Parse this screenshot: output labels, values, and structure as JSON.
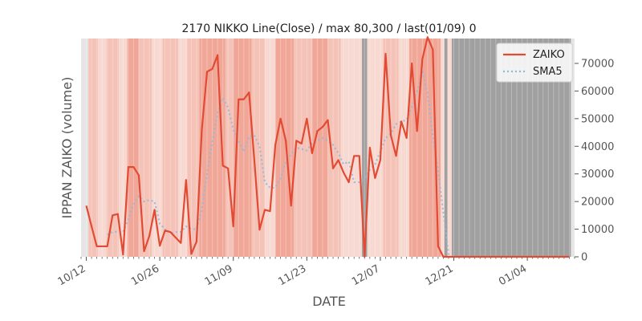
{
  "chart_data": {
    "type": "line",
    "title": "2170 NIKKO Line(Close) / max 80,300 / last(01/09) 0",
    "xlabel": "DATE",
    "ylabel": "IPPAN ZAIKO (volume)",
    "y_axis_side": "right",
    "ylim": [
      0,
      79000
    ],
    "y_ticks": [
      0,
      10000,
      20000,
      30000,
      40000,
      50000,
      60000,
      70000
    ],
    "x_tick_labels": [
      "10/12",
      "10/26",
      "11/09",
      "11/23",
      "12/07",
      "12/21",
      "01/04"
    ],
    "x_tick_days": [
      0,
      14,
      28,
      42,
      56,
      70,
      84
    ],
    "x_minor_tick_every_days": 1,
    "x_range_days": [
      -1,
      93
    ],
    "x_origin_label": "10/12",
    "legend_position": "top-right",
    "grid": false,
    "colors": {
      "zaiko": "#E24A33",
      "sma5": "#8EBADE",
      "band_light": "#F7D9D1",
      "band_mid": "#F4C2B6",
      "band_strong": "#F1A797",
      "band_gray": "#A0A0A0",
      "band_edge": "#E5E5E5"
    },
    "series": [
      {
        "name": "ZAIKO",
        "style": "solid",
        "x": [
          0,
          1,
          2,
          3,
          4,
          5,
          6,
          7,
          8,
          9,
          10,
          11,
          12,
          13,
          14,
          15,
          16,
          17,
          18,
          19,
          20,
          21,
          22,
          23,
          24,
          25,
          26,
          27,
          28,
          29,
          30,
          31,
          32,
          33,
          34,
          35,
          36,
          37,
          38,
          39,
          40,
          41,
          42,
          43,
          44,
          45,
          46,
          47,
          48,
          49,
          50,
          51,
          52,
          53,
          54,
          55,
          56,
          57,
          58,
          59,
          60,
          61,
          62,
          63,
          64,
          65,
          66,
          67,
          68,
          69,
          70,
          71,
          72,
          73,
          74,
          75,
          76,
          77,
          78,
          79,
          80,
          81,
          82,
          83,
          84,
          85,
          86,
          87,
          88,
          89,
          90,
          91,
          92
        ],
        "y": [
          18500,
          11000,
          3800,
          3800,
          3800,
          15000,
          15500,
          800,
          32500,
          32500,
          29500,
          2000,
          7500,
          17000,
          4000,
          9500,
          9000,
          7000,
          5000,
          27800,
          1000,
          5500,
          46000,
          67000,
          68000,
          73000,
          33000,
          32000,
          11000,
          57000,
          57000,
          59500,
          35000,
          9800,
          17000,
          16500,
          40500,
          50000,
          42000,
          18500,
          42000,
          41000,
          50000,
          37500,
          45500,
          47000,
          49500,
          32000,
          35000,
          30500,
          27000,
          36500,
          36500,
          0,
          39500,
          28500,
          35000,
          73500,
          44000,
          36500,
          49000,
          43000,
          70000,
          45500,
          71500,
          79500,
          75000,
          3800,
          0,
          0,
          0,
          0,
          0,
          0,
          0,
          0,
          0,
          0,
          0,
          0,
          0,
          0,
          0,
          0,
          0,
          0,
          0,
          0,
          0,
          0,
          0,
          0,
          0
        ]
      },
      {
        "name": "SMA5",
        "style": "dotted",
        "x": [
          4,
          5,
          6,
          7,
          8,
          9,
          10,
          11,
          12,
          13,
          14,
          15,
          16,
          17,
          18,
          19,
          20,
          21,
          22,
          23,
          24,
          25,
          26,
          27,
          28,
          29,
          30,
          31,
          32,
          33,
          34,
          35,
          36,
          37,
          38,
          39,
          40,
          41,
          42,
          43,
          44,
          45,
          46,
          47,
          48,
          49,
          50,
          51,
          52,
          53,
          54,
          55,
          56,
          57,
          58,
          59,
          60,
          61,
          62,
          63,
          64,
          65,
          66,
          67,
          68,
          69,
          70,
          71,
          72,
          73
        ],
        "y": [
          8000,
          9000,
          9000,
          9000,
          13500,
          19000,
          22000,
          20000,
          20500,
          20000,
          12000,
          10000,
          8500,
          9000,
          9000,
          11000,
          10000,
          10000,
          17000,
          30000,
          41500,
          52000,
          57500,
          54000,
          46000,
          42000,
          38000,
          43500,
          44000,
          40000,
          27000,
          25000,
          25000,
          28500,
          34500,
          37000,
          39500,
          39000,
          38500,
          41000,
          42000,
          43000,
          42000,
          40500,
          37500,
          33500,
          34500,
          27000,
          27000,
          28500,
          31500,
          33500,
          38000,
          43000,
          44500,
          48000,
          49000,
          49500,
          54000,
          60000,
          67000,
          59000,
          44000,
          31000,
          16000,
          1000,
          0,
          0,
          0,
          0
        ]
      }
    ],
    "background_bands": [
      {
        "x0": -1.0,
        "x1": 0.4,
        "tone": "edge"
      },
      {
        "x0": 0.4,
        "x1": 2.2,
        "tone": "mid"
      },
      {
        "x0": 2.2,
        "x1": 3.8,
        "tone": "light"
      },
      {
        "x0": 3.8,
        "x1": 6.2,
        "tone": "mid"
      },
      {
        "x0": 6.2,
        "x1": 7.8,
        "tone": "light"
      },
      {
        "x0": 7.8,
        "x1": 10.0,
        "tone": "strong"
      },
      {
        "x0": 10.0,
        "x1": 12.5,
        "tone": "mid"
      },
      {
        "x0": 12.5,
        "x1": 14.5,
        "tone": "light"
      },
      {
        "x0": 14.5,
        "x1": 17.5,
        "tone": "mid"
      },
      {
        "x0": 17.5,
        "x1": 19.2,
        "tone": "light"
      },
      {
        "x0": 19.2,
        "x1": 21.5,
        "tone": "mid"
      },
      {
        "x0": 21.5,
        "x1": 26.5,
        "tone": "strong"
      },
      {
        "x0": 26.5,
        "x1": 28.0,
        "tone": "mid"
      },
      {
        "x0": 28.0,
        "x1": 31.5,
        "tone": "strong"
      },
      {
        "x0": 31.5,
        "x1": 34.0,
        "tone": "mid"
      },
      {
        "x0": 34.0,
        "x1": 36.0,
        "tone": "light"
      },
      {
        "x0": 36.0,
        "x1": 39.5,
        "tone": "strong"
      },
      {
        "x0": 39.5,
        "x1": 43.0,
        "tone": "mid"
      },
      {
        "x0": 43.0,
        "x1": 46.0,
        "tone": "strong"
      },
      {
        "x0": 46.0,
        "x1": 48.5,
        "tone": "mid"
      },
      {
        "x0": 48.5,
        "x1": 52.5,
        "tone": "light"
      },
      {
        "x0": 52.5,
        "x1": 53.5,
        "tone": "gray"
      },
      {
        "x0": 53.5,
        "x1": 56.5,
        "tone": "light"
      },
      {
        "x0": 56.5,
        "x1": 59.5,
        "tone": "mid"
      },
      {
        "x0": 59.5,
        "x1": 61.5,
        "tone": "light"
      },
      {
        "x0": 61.5,
        "x1": 67.5,
        "tone": "strong"
      },
      {
        "x0": 67.5,
        "x1": 68.2,
        "tone": "light"
      },
      {
        "x0": 68.2,
        "x1": 68.8,
        "tone": "gray"
      },
      {
        "x0": 68.8,
        "x1": 69.6,
        "tone": "light"
      },
      {
        "x0": 69.6,
        "x1": 92.3,
        "tone": "gray"
      },
      {
        "x0": 92.3,
        "x1": 93.0,
        "tone": "edge"
      }
    ]
  }
}
